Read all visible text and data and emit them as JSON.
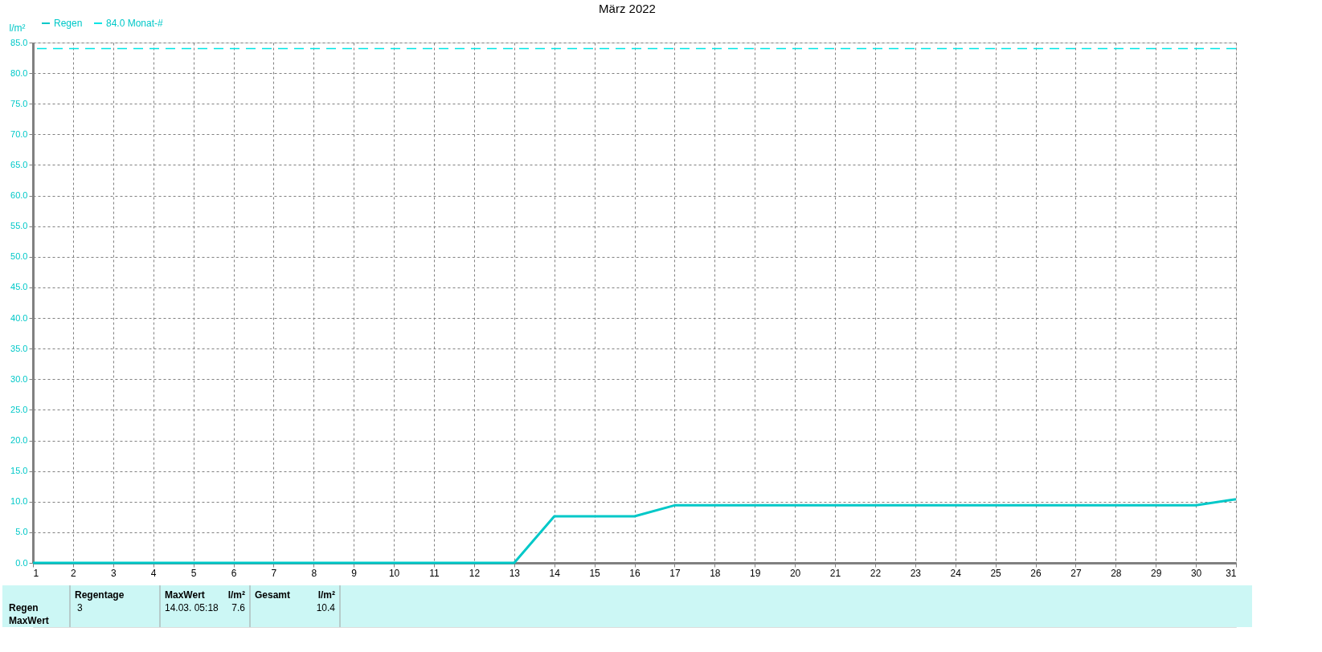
{
  "chart_data": {
    "type": "line",
    "title": "März 2022",
    "ylabel": "l/m²",
    "x": [
      1,
      2,
      3,
      4,
      5,
      6,
      7,
      8,
      9,
      10,
      11,
      12,
      13,
      14,
      15,
      16,
      17,
      18,
      19,
      20,
      21,
      22,
      23,
      24,
      25,
      26,
      27,
      28,
      29,
      30,
      31
    ],
    "series": [
      {
        "name": "Regen",
        "color": "#00c8c8",
        "values": [
          0,
          0,
          0,
          0,
          0,
          0,
          0,
          0,
          0,
          0,
          0,
          0,
          0,
          7.6,
          7.6,
          7.6,
          9.4,
          9.4,
          9.4,
          9.4,
          9.4,
          9.4,
          9.4,
          9.4,
          9.4,
          9.4,
          9.4,
          9.4,
          9.4,
          9.4,
          10.4
        ]
      }
    ],
    "xlim": [
      1,
      31
    ],
    "xticks": [
      1,
      2,
      3,
      4,
      5,
      6,
      7,
      8,
      9,
      10,
      11,
      12,
      13,
      14,
      15,
      16,
      17,
      18,
      19,
      20,
      21,
      22,
      23,
      24,
      25,
      26,
      27,
      28,
      29,
      30,
      31
    ],
    "ylim": [
      0,
      85
    ],
    "yticks": [
      {
        "value": 0,
        "label": "0.0"
      },
      {
        "value": 5,
        "label": "5.0"
      },
      {
        "value": 10,
        "label": "10.0"
      },
      {
        "value": 15,
        "label": "15.0"
      },
      {
        "value": 20,
        "label": "20.0"
      },
      {
        "value": 25,
        "label": "25.0"
      },
      {
        "value": 30,
        "label": "30.0"
      },
      {
        "value": 35,
        "label": "35.0"
      },
      {
        "value": 40,
        "label": "40.0"
      },
      {
        "value": 45,
        "label": "45.0"
      },
      {
        "value": 50,
        "label": "50.0"
      },
      {
        "value": 55,
        "label": "55.0"
      },
      {
        "value": 60,
        "label": "60.0"
      },
      {
        "value": 65,
        "label": "65.0"
      },
      {
        "value": 70,
        "label": "70.0"
      },
      {
        "value": 75,
        "label": "75.0"
      },
      {
        "value": 80,
        "label": "80.0"
      },
      {
        "value": 85,
        "label": "85.0"
      }
    ],
    "ref_lines": [
      {
        "axis": "y",
        "value": 84.0,
        "label": "84.0 Monat-#",
        "color": "#00e5e5",
        "line_style": "dashed"
      }
    ],
    "grid": true,
    "legend": "top left",
    "marker": "none",
    "line_style": "solid",
    "annotations": [
      "Regentage",
      "MaxWert",
      "l/m²",
      "Gesamt",
      "l/m²",
      "Regen",
      "3",
      "14.03.  05:18",
      "7.6",
      "10.4",
      "MaxWert"
    ]
  }
}
